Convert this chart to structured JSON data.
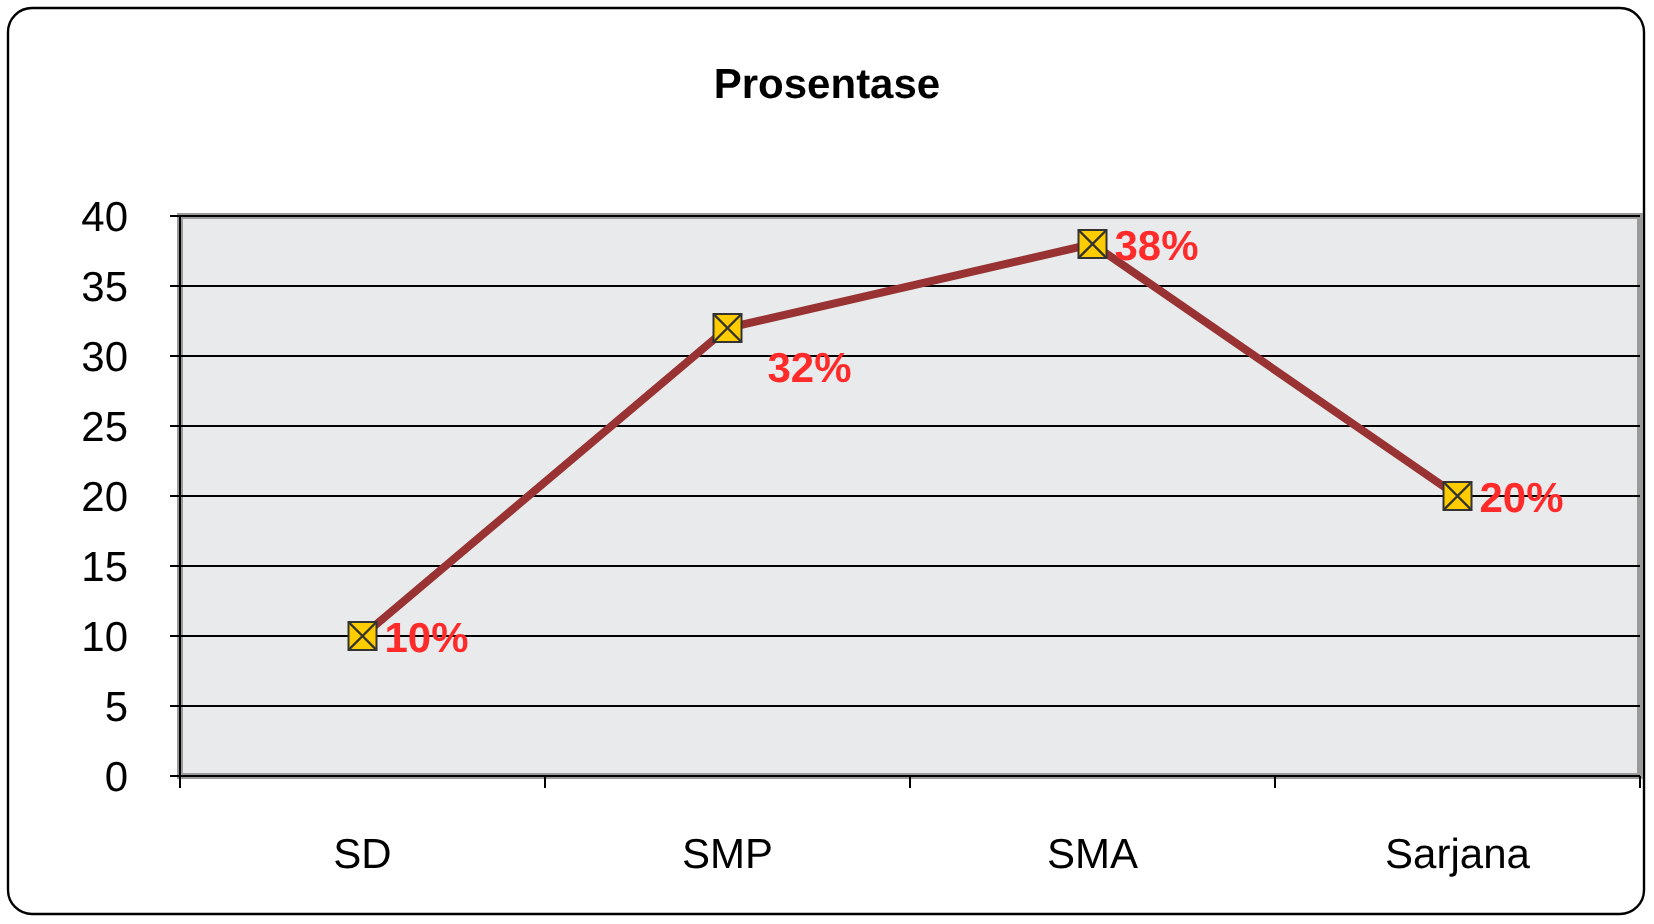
{
  "chart_data": {
    "type": "line",
    "title": "Prosentase",
    "categories": [
      "SD",
      "SMP",
      "SMA",
      "Sarjana"
    ],
    "series": [
      {
        "color": "#993333",
        "values": [
          10,
          32,
          38,
          20
        ],
        "value_labels": [
          "10%",
          "32%",
          "38%",
          "20%"
        ]
      }
    ],
    "ylim": [
      0,
      40
    ],
    "yticks": [
      0,
      5,
      10,
      15,
      20,
      25,
      30,
      35,
      40
    ],
    "grid": "y",
    "marker": "square",
    "line_style": "solid"
  }
}
